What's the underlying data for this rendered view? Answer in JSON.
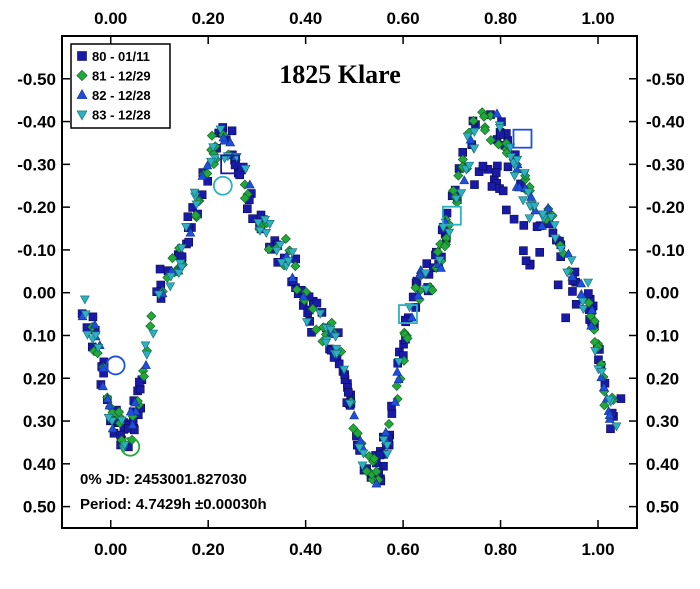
{
  "chart_data": {
    "type": "scatter",
    "title": "1825 Klare",
    "xlim": [
      -0.1,
      1.08
    ],
    "ylim": [
      0.55,
      -0.6
    ],
    "x_ticks": [
      "0.00",
      "0.20",
      "0.40",
      "0.60",
      "0.80",
      "1.00"
    ],
    "x_tick_values": [
      0,
      0.2,
      0.4,
      0.6,
      0.8,
      1.0
    ],
    "y_ticks": [
      "-0.50",
      "-0.40",
      "-0.30",
      "-0.20",
      "-0.10",
      "0.00",
      "0.10",
      "0.20",
      "0.30",
      "0.40",
      "0.50"
    ],
    "y_tick_values": [
      -0.5,
      -0.4,
      -0.3,
      -0.2,
      -0.1,
      0,
      0.1,
      0.2,
      0.3,
      0.4,
      0.5
    ],
    "inverted_y": true,
    "legend_position": "top-left",
    "series": [
      {
        "name": "80 - 01/11",
        "marker": "square",
        "color": "#1a1aa8"
      },
      {
        "name": "81 - 12/29",
        "marker": "diamond",
        "color": "#22a83a"
      },
      {
        "name": "82 - 12/28",
        "marker": "triangle-up",
        "color": "#1f4fe0"
      },
      {
        "name": "83 - 12/28",
        "marker": "triangle-down",
        "color": "#2eb0c0"
      }
    ],
    "annotations": {
      "epoch_line": "0%  JD:  2453001.827030",
      "period_line": "Period: 4.7429h  ±0.00030h"
    },
    "curve": {
      "description_free": true,
      "phase_min1": 0.03,
      "mag_min1": 0.33,
      "phase_max1": 0.23,
      "mag_max1": -0.36,
      "phase_min2": 0.54,
      "mag_min2": 0.42,
      "phase_max2": 0.77,
      "mag_max2": -0.4
    }
  }
}
